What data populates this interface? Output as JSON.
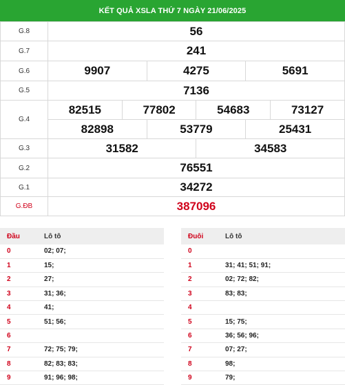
{
  "header": {
    "title": "KẾT QUẢ XSLA THỨ 7 NGÀY 21/06/2025"
  },
  "prizes": {
    "g8": {
      "label": "G.8",
      "numbers": [
        "56"
      ]
    },
    "g7": {
      "label": "G.7",
      "numbers": [
        "241"
      ]
    },
    "g6": {
      "label": "G.6",
      "numbers": [
        "9907",
        "4275",
        "5691"
      ]
    },
    "g5": {
      "label": "G.5",
      "numbers": [
        "7136"
      ]
    },
    "g4": {
      "label": "G.4",
      "numbers": [
        "82515",
        "77802",
        "54683",
        "73127",
        "82898",
        "53779",
        "25431"
      ]
    },
    "g3": {
      "label": "G.3",
      "numbers": [
        "31582",
        "34583"
      ]
    },
    "g2": {
      "label": "G.2",
      "numbers": [
        "76551"
      ]
    },
    "g1": {
      "label": "G.1",
      "numbers": [
        "34272"
      ]
    },
    "gdb": {
      "label": "G.ĐB",
      "numbers": [
        "387096"
      ]
    }
  },
  "loto_head": {
    "col1": "Đầu",
    "col2": "Lô tô",
    "rows": [
      {
        "key": "0",
        "value": "02; 07;"
      },
      {
        "key": "1",
        "value": "15;"
      },
      {
        "key": "2",
        "value": "27;"
      },
      {
        "key": "3",
        "value": "31; 36;"
      },
      {
        "key": "4",
        "value": "41;"
      },
      {
        "key": "5",
        "value": "51; 56;"
      },
      {
        "key": "6",
        "value": ""
      },
      {
        "key": "7",
        "value": "72; 75; 79;"
      },
      {
        "key": "8",
        "value": "82; 83; 83;"
      },
      {
        "key": "9",
        "value": "91; 96; 98;"
      }
    ]
  },
  "loto_tail": {
    "col1": "Đuôi",
    "col2": "Lô tô",
    "rows": [
      {
        "key": "0",
        "value": ""
      },
      {
        "key": "1",
        "value": "31; 41; 51; 91;"
      },
      {
        "key": "2",
        "value": "02; 72; 82;"
      },
      {
        "key": "3",
        "value": "83; 83;"
      },
      {
        "key": "4",
        "value": ""
      },
      {
        "key": "5",
        "value": "15; 75;"
      },
      {
        "key": "6",
        "value": "36; 56; 96;"
      },
      {
        "key": "7",
        "value": "07; 27;"
      },
      {
        "key": "8",
        "value": "98;"
      },
      {
        "key": "9",
        "value": "79;"
      }
    ]
  },
  "colors": {
    "header_bg": "#29a532",
    "special": "#d0021b",
    "loto_head_bg": "#eeeeee"
  }
}
